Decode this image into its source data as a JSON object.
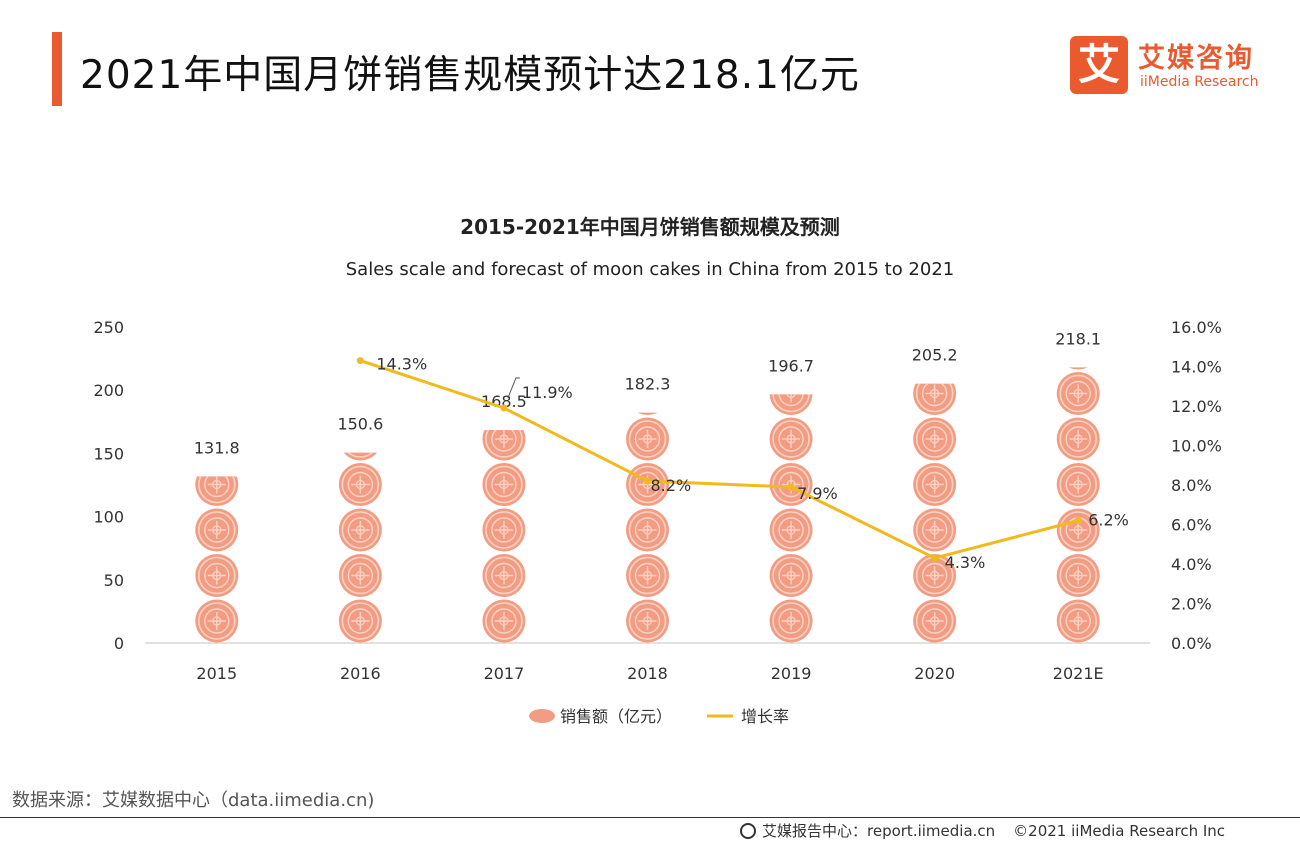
{
  "header": {
    "title": "2021年中国月饼销售规模预计达218.1亿元",
    "logo_mark": "艾",
    "logo_cn": "艾媒咨询",
    "logo_en": "iiMedia Research"
  },
  "source": "数据来源：艾媒数据中心（data.iimedia.cn)",
  "footer": {
    "center": "艾媒报告中心：report.iimedia.cn",
    "copyright": "©2021  iiMedia Research Inc"
  },
  "colors": {
    "accent": "#ea5a2f",
    "bar": "#f29d83",
    "line": "#f2b91c"
  },
  "chart_data": {
    "type": "bar",
    "title": "2015-2021年中国月饼销售额规模及预测",
    "subtitle": "Sales scale and forecast of moon cakes in China from 2015 to 2021",
    "categories": [
      "2015",
      "2016",
      "2017",
      "2018",
      "2019",
      "2020",
      "2021E"
    ],
    "series": [
      {
        "name": "销售额（亿元）",
        "type": "bar",
        "axis": "left",
        "values": [
          131.8,
          150.6,
          168.5,
          182.3,
          196.7,
          205.2,
          218.1
        ],
        "labels": [
          "131.8",
          "150.6",
          "168.5",
          "182.3",
          "196.7",
          "205.2",
          "218.1"
        ]
      },
      {
        "name": "增长率",
        "type": "line",
        "axis": "right",
        "values": [
          null,
          14.3,
          11.9,
          8.2,
          7.9,
          4.3,
          6.2
        ],
        "labels": [
          "",
          "14.3%",
          "11.9%",
          "8.2%",
          "7.9%",
          "4.3%",
          "6.2%"
        ]
      }
    ],
    "y_left": {
      "min": 0,
      "max": 250,
      "ticks": [
        "0",
        "50",
        "100",
        "150",
        "200",
        "250"
      ]
    },
    "y_right": {
      "min": 0,
      "max": 16,
      "ticks": [
        "0.0%",
        "2.0%",
        "4.0%",
        "6.0%",
        "8.0%",
        "10.0%",
        "12.0%",
        "14.0%",
        "16.0%"
      ]
    },
    "legend": [
      "销售额（亿元）",
      "增长率"
    ],
    "legend_position": "bottom"
  }
}
